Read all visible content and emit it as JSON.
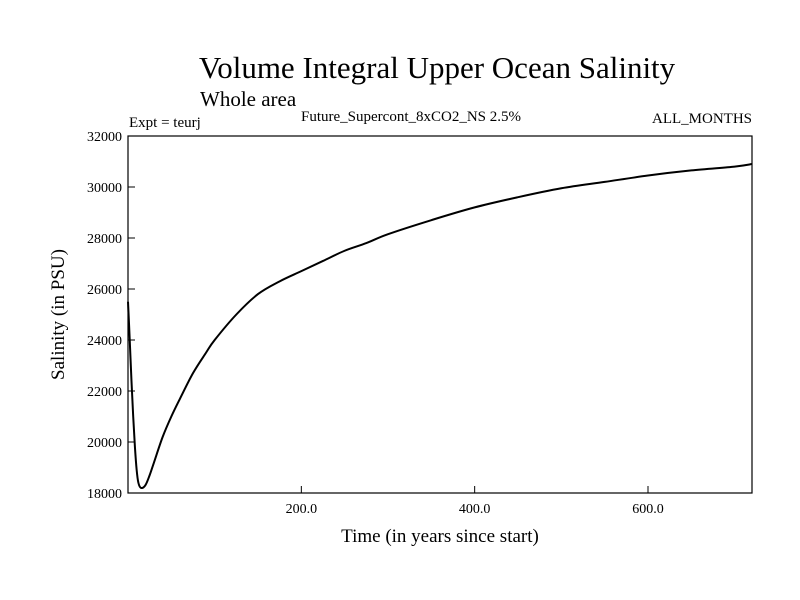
{
  "chart_data": {
    "type": "line",
    "title": "Volume Integral Upper Ocean Salinity",
    "subtitle": "Whole area",
    "experiment_label": "Expt = teurj",
    "run_label": "Future_Supercont_8xCO2_NS 2.5%",
    "period_label": "ALL_MONTHS",
    "xlabel": "Time (in years since start)",
    "ylabel": "Salinity (in PSU)",
    "xlim": [
      0,
      720
    ],
    "ylim": [
      18000,
      32000
    ],
    "x_ticks": [
      200,
      400,
      600
    ],
    "x_tick_labels": [
      "200.0",
      "400.0",
      "600.0"
    ],
    "y_ticks": [
      18000,
      20000,
      22000,
      24000,
      26000,
      28000,
      30000,
      32000
    ],
    "y_tick_labels": [
      "18000",
      "20000",
      "22000",
      "24000",
      "26000",
      "28000",
      "30000",
      "32000"
    ],
    "grid": false,
    "series": [
      {
        "color": "#000000",
        "x": [
          0,
          2,
          4,
          6,
          8,
          10,
          12,
          15,
          20,
          25,
          30,
          40,
          50,
          60,
          75,
          90,
          100,
          125,
          150,
          175,
          200,
          225,
          250,
          275,
          300,
          350,
          400,
          450,
          500,
          550,
          600,
          650,
          700,
          720
        ],
        "y": [
          25500,
          24000,
          22400,
          21000,
          19800,
          18900,
          18400,
          18200,
          18300,
          18700,
          19200,
          20200,
          21000,
          21700,
          22700,
          23500,
          24000,
          25000,
          25800,
          26300,
          26700,
          27100,
          27500,
          27800,
          28150,
          28700,
          29200,
          29600,
          29950,
          30200,
          30450,
          30650,
          30800,
          30900
        ]
      }
    ]
  }
}
